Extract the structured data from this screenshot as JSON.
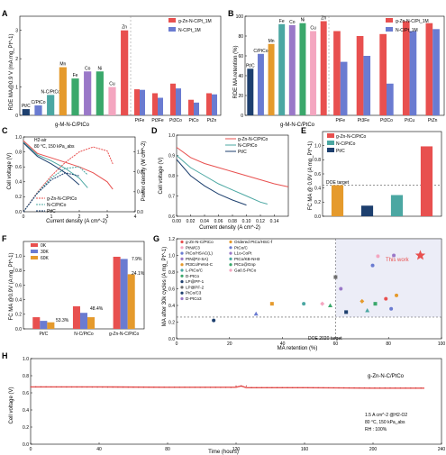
{
  "colors": {
    "red": "#e8504f",
    "blue": "#6a7bd1",
    "teal": "#4ba7a2",
    "green": "#3aa86b",
    "orange": "#e59a2c",
    "navy": "#1d3f6e",
    "gray": "#6e6e6e",
    "pink": "#f4a6c0",
    "purple": "#9a78c8"
  },
  "panels": {
    "A": {
      "letter": "A"
    },
    "B": {
      "letter": "B"
    },
    "C": {
      "letter": "C"
    },
    "D": {
      "letter": "D"
    },
    "E": {
      "letter": "E"
    },
    "F": {
      "letter": "F"
    },
    "G": {
      "letter": "G"
    },
    "H": {
      "letter": "H"
    }
  },
  "chart_data": [
    {
      "id": "A",
      "type": "bar",
      "ylabel": "RDE MA@0.9 V (mA mg_Pt^-1)",
      "ylim": [
        0,
        3.5
      ],
      "yticks": [
        0,
        1,
        2,
        3
      ],
      "group_label": "g-M-N-C/PtCo",
      "legend": [
        "g-Zn-N-C/Pt_1M",
        "N-C/Pt_1M"
      ],
      "left_bars": [
        {
          "label": "Pt/C",
          "value": 0.22,
          "color": "#1d3f6e"
        },
        {
          "label": "C/PtCo",
          "value": 0.35,
          "color": "#6a7bd1"
        },
        {
          "label": "N-C/PtCo",
          "value": 0.72,
          "color": "#4ba7a2"
        },
        {
          "label": "Mn",
          "value": 1.7,
          "color": "#e59a2c"
        },
        {
          "label": "Fe",
          "value": 1.3,
          "color": "#3aa86b"
        },
        {
          "label": "Co",
          "value": 1.55,
          "color": "#9a78c8"
        },
        {
          "label": "Ni",
          "value": 1.55,
          "color": "#3aa86b"
        },
        {
          "label": "Cu",
          "value": 1.0,
          "color": "#f4a6c0"
        },
        {
          "label": "Zn",
          "value": 3.0,
          "color": "#e8504f"
        }
      ],
      "right_categories": [
        "PtFe",
        "Pt3Fe",
        "Pt3Co",
        "PtCo",
        "PtZn"
      ],
      "right_series": [
        {
          "name": "g-Zn-N-C/Pt_1M",
          "values": [
            0.92,
            0.78,
            1.12,
            0.55,
            0.78
          ]
        },
        {
          "name": "N-C/Pt_1M",
          "values": [
            0.9,
            0.62,
            0.95,
            0.45,
            0.74
          ]
        }
      ]
    },
    {
      "id": "B",
      "type": "bar",
      "ylabel": "RDE MA retention (%)",
      "ylim": [
        0,
        100
      ],
      "yticks": [
        0,
        20,
        40,
        60,
        80,
        100
      ],
      "group_label": "g-M-N-C/PtCo",
      "legend": [
        "g-Zn-N-C/Pt_1M",
        "N-C/Pt_1M"
      ],
      "left_bars": [
        {
          "label": "Pt/C",
          "value": 47,
          "color": "#1d3f6e"
        },
        {
          "label": "C/PtCo",
          "value": 62,
          "color": "#6a7bd1"
        },
        {
          "label": "Mn",
          "value": 72,
          "color": "#e59a2c"
        },
        {
          "label": "Fe",
          "value": 92,
          "color": "#4ba7a2"
        },
        {
          "label": "Co",
          "value": 91,
          "color": "#9a78c8"
        },
        {
          "label": "Ni",
          "value": 93,
          "color": "#3aa86b"
        },
        {
          "label": "Cu",
          "value": 85,
          "color": "#f4a6c0"
        },
        {
          "label": "Zn",
          "value": 95,
          "color": "#e8504f"
        }
      ],
      "right_categories": [
        "PtFe",
        "Pt3Fe",
        "Pt3Co",
        "PtCu",
        "PtZn"
      ],
      "right_series": [
        {
          "name": "g-Zn-N-C/Pt_1M",
          "values": [
            85,
            80,
            82,
            95,
            93
          ]
        },
        {
          "name": "N-C/Pt_1M",
          "values": [
            54,
            60,
            32,
            85,
            87
          ]
        }
      ]
    },
    {
      "id": "C",
      "type": "line",
      "xlabel": "Current density (A cm^-2)",
      "ylabel": "Cell voltage (V)",
      "y2label": "Power density (W cm^-2)",
      "annotation": [
        "H2-air",
        "80 °C, 150 kPa_abs"
      ],
      "xlim": [
        0,
        4
      ],
      "ylim": [
        0,
        1.0
      ],
      "y2lim": [
        0,
        1.5
      ],
      "xticks": [
        0,
        1,
        2,
        3,
        4
      ],
      "yticks": [
        0,
        0.2,
        0.4,
        0.6,
        0.8,
        1.0
      ],
      "y2ticks": [
        0,
        0.4,
        0.8,
        1.2
      ],
      "series": [
        {
          "name": "g-Zn-N-C/PtCo",
          "color": "#e8504f",
          "x": [
            0,
            0.5,
            1.0,
            1.5,
            2.0,
            2.5,
            3.0,
            3.2
          ],
          "voltage": [
            0.95,
            0.78,
            0.72,
            0.66,
            0.6,
            0.52,
            0.4,
            0.3
          ],
          "power": [
            0,
            0.39,
            0.72,
            0.99,
            1.2,
            1.3,
            1.22,
            0.96
          ]
        },
        {
          "name": "N-C/PtCo",
          "color": "#4ba7a2",
          "x": [
            0,
            0.5,
            1.0,
            1.5,
            2.0,
            2.3
          ],
          "voltage": [
            0.93,
            0.76,
            0.68,
            0.58,
            0.45,
            0.32
          ],
          "power": [
            0,
            0.38,
            0.68,
            0.87,
            0.9,
            0.74
          ]
        },
        {
          "name": "Pt/C",
          "color": "#1d3f6e",
          "x": [
            0,
            0.5,
            1.0,
            1.5,
            2.0
          ],
          "voltage": [
            0.92,
            0.74,
            0.64,
            0.52,
            0.36
          ],
          "power": [
            0,
            0.37,
            0.64,
            0.78,
            0.72
          ]
        }
      ]
    },
    {
      "id": "D",
      "type": "line",
      "xlabel": "Current density (A cm^-2)",
      "ylabel": "Cell voltage (V)",
      "xlim": [
        0,
        0.16
      ],
      "ylim": [
        0.6,
        1.0
      ],
      "xticks": [
        0,
        0.02,
        0.04,
        0.06,
        0.08,
        0.1,
        0.12,
        0.14
      ],
      "yticks": [
        0.6,
        0.7,
        0.8,
        0.9,
        1.0
      ],
      "series": [
        {
          "name": "g-Zn-N-C/PtCo",
          "color": "#e8504f",
          "x": [
            0,
            0.02,
            0.04,
            0.06,
            0.08,
            0.1,
            0.12,
            0.14,
            0.16
          ],
          "y": [
            0.94,
            0.89,
            0.86,
            0.84,
            0.82,
            0.8,
            0.78,
            0.76,
            0.745
          ]
        },
        {
          "name": "N-C/PtCo",
          "color": "#4ba7a2",
          "x": [
            0,
            0.02,
            0.04,
            0.06,
            0.08,
            0.1,
            0.12,
            0.13
          ],
          "y": [
            0.9,
            0.84,
            0.8,
            0.76,
            0.73,
            0.7,
            0.67,
            0.66
          ]
        },
        {
          "name": "Pt/C",
          "color": "#1d3f6e",
          "x": [
            0,
            0.02,
            0.04,
            0.06,
            0.08,
            0.1
          ],
          "y": [
            0.88,
            0.8,
            0.75,
            0.71,
            0.68,
            0.655
          ]
        }
      ]
    },
    {
      "id": "E",
      "type": "bar",
      "ylabel": "FC MA @ 0.9V (A mg_Pt^-1)",
      "ylim": [
        0,
        1.2
      ],
      "yticks": [
        0,
        0.2,
        0.4,
        0.6,
        0.8,
        1.0
      ],
      "legend": [
        "g-Zn-N-C/PtCo",
        "N-C/PtCo",
        "Pt/C"
      ],
      "target_label": "DOE target",
      "target_value": 0.44,
      "bars": [
        {
          "value": 0.44,
          "color": "#e59a2c"
        },
        {
          "value": 0.15,
          "color": "#1d3f6e"
        },
        {
          "value": 0.3,
          "color": "#4ba7a2"
        },
        {
          "value": 0.99,
          "color": "#e8504f"
        }
      ]
    },
    {
      "id": "F",
      "type": "bar",
      "ylabel": "FC MA @0.9V (A mg_Pt^-1)",
      "ylim": [
        0,
        1.2
      ],
      "yticks": [
        0,
        0.2,
        0.4,
        0.6,
        0.8,
        1.0
      ],
      "legend": [
        "0K",
        "30K",
        "60K"
      ],
      "categories": [
        "Pt/C",
        "N-C/PtCo",
        "g-Zn-N-C/PtCo"
      ],
      "series": [
        {
          "name": "0K",
          "color": "#e8504f",
          "values": [
            0.16,
            0.31,
            0.99
          ]
        },
        {
          "name": "30K",
          "color": "#6a7bd1",
          "values": [
            0.11,
            0.22,
            0.96
          ]
        },
        {
          "name": "60K",
          "color": "#e59a2c",
          "values": [
            0.09,
            0.16,
            0.75
          ]
        }
      ],
      "annotations": [
        "53.3%",
        "48.4%",
        "7.9%",
        "24.1%"
      ]
    },
    {
      "id": "G",
      "type": "scatter",
      "xlabel": "MA retention (%)",
      "ylabel": "MA after 30k cycles (A mg_Pt^-1)",
      "xlim": [
        0,
        100
      ],
      "ylim": [
        0,
        1.2
      ],
      "xticks": [
        0,
        20,
        40,
        60,
        80,
        100
      ],
      "yticks": [
        0,
        0.2,
        0.4,
        0.6,
        0.8,
        1.0,
        1.2
      ],
      "target_label": "DOE 2020 target",
      "this_work_label": "This work",
      "legend_left": [
        "g-Zn-N-C/PtCo",
        "PtNi/C3",
        "PtCo/HSAC(L)",
        "PtNi(P2-SA)",
        "Pt3Co/FeN4-C",
        "L-PtCo/C",
        "D-PtCo",
        "LP@PF-1",
        "LP@PF-2",
        "PtCo/C3",
        "D-PtCo3"
      ],
      "legend_right": [
        "Ordered PtCo/HSC-f",
        "PtCo/C",
        "L1o-CoPt",
        "PtCo/KB-NH3",
        "PtCo@Gnp",
        "Ga0.5-PtCo"
      ],
      "points": [
        {
          "x": 92,
          "y": 1.0,
          "color": "#e8504f",
          "shape": "star"
        },
        {
          "x": 76,
          "y": 0.99,
          "color": "#f4a6c0",
          "shape": "circle"
        },
        {
          "x": 82,
          "y": 1.0,
          "color": "#9a78c8",
          "shape": "circle"
        },
        {
          "x": 60,
          "y": 0.74,
          "color": "#6e6e6e",
          "shape": "square"
        },
        {
          "x": 62,
          "y": 0.6,
          "color": "#9a78c8",
          "shape": "circle"
        },
        {
          "x": 64,
          "y": 0.32,
          "color": "#1d3f6e",
          "shape": "square"
        },
        {
          "x": 70,
          "y": 0.45,
          "color": "#e59a2c",
          "shape": "diamond"
        },
        {
          "x": 72,
          "y": 0.34,
          "color": "#4ba7a2",
          "shape": "triangle"
        },
        {
          "x": 75,
          "y": 0.42,
          "color": "#3aa86b",
          "shape": "square"
        },
        {
          "x": 79,
          "y": 0.48,
          "color": "#e8504f",
          "shape": "circle"
        },
        {
          "x": 81,
          "y": 0.36,
          "color": "#6a7bd1",
          "shape": "circle"
        },
        {
          "x": 83,
          "y": 0.52,
          "color": "#e59a2c",
          "shape": "circle"
        },
        {
          "x": 58,
          "y": 0.4,
          "color": "#3aa86b",
          "shape": "triangle"
        },
        {
          "x": 55,
          "y": 0.42,
          "color": "#f4a6c0",
          "shape": "diamond"
        },
        {
          "x": 48,
          "y": 0.42,
          "color": "#4ba7a2",
          "shape": "circle"
        },
        {
          "x": 36,
          "y": 0.42,
          "color": "#e59a2c",
          "shape": "square"
        },
        {
          "x": 30,
          "y": 0.3,
          "color": "#6a7bd1",
          "shape": "triangle"
        },
        {
          "x": 14,
          "y": 0.22,
          "color": "#1d3f6e",
          "shape": "circle"
        },
        {
          "x": 74,
          "y": 0.88,
          "color": "#6a7bd1",
          "shape": "circle"
        }
      ],
      "target_x": 60,
      "target_y": 0.26
    },
    {
      "id": "H",
      "type": "line",
      "xlabel": "Time (hours)",
      "ylabel": "Cell voltage (V)",
      "xlim": [
        0,
        240
      ],
      "ylim": [
        0,
        1.0
      ],
      "xticks": [
        0,
        40,
        80,
        120,
        160,
        200,
        240
      ],
      "yticks": [
        0,
        0.2,
        0.4,
        0.6,
        0.8,
        1.0
      ],
      "series_name": "g-Zn-N-C/PtCo",
      "series_color": "#e8504f",
      "x": [
        0,
        40,
        80,
        120,
        123,
        126,
        160,
        200,
        230
      ],
      "y": [
        0.67,
        0.67,
        0.665,
        0.665,
        0.68,
        0.66,
        0.66,
        0.655,
        0.655
      ],
      "conditions": [
        "1.5 A cm^-2 @H2-O2",
        "80 °C, 150 kPa_abs",
        "RH : 100%"
      ]
    }
  ]
}
